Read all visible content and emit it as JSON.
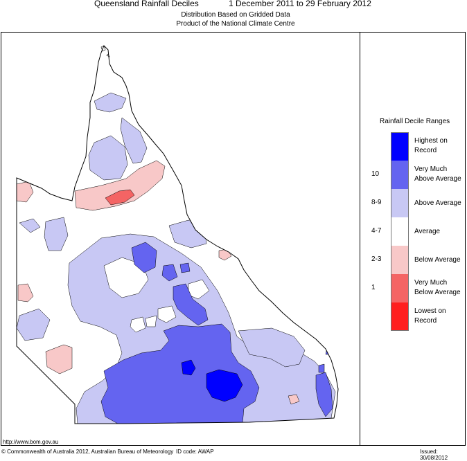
{
  "header": {
    "title": "Queensland Rainfall Deciles",
    "dates": "1 December 2011 to 29 February 2012",
    "subtitle1": "Distribution Based on Gridded Data",
    "subtitle2": "Product of the National Climate Centre"
  },
  "legend": {
    "title": "Rainfall Decile Ranges",
    "items": [
      {
        "code": "",
        "label1": "Highest on",
        "label2": "Record",
        "color": "#0000ff"
      },
      {
        "code": "10",
        "label1": "Very Much",
        "label2": "Above Average",
        "color": "#6464f0"
      },
      {
        "code": "8-9",
        "label1": "Above Average",
        "label2": "",
        "color": "#c8c8f4"
      },
      {
        "code": "4-7",
        "label1": "Average",
        "label2": "",
        "color": "#ffffff"
      },
      {
        "code": "2-3",
        "label1": "Below Average",
        "label2": "",
        "color": "#f8c8c8"
      },
      {
        "code": "1",
        "label1": "Very Much",
        "label2": "Below Average",
        "color": "#f46464"
      },
      {
        "code": "",
        "label1": "Lowest on",
        "label2": "Record",
        "color": "#ff1e1e"
      }
    ]
  },
  "footer": {
    "url": "http://www.bom.gov.au",
    "copyright": "© Commonwealth of Australia 2012, Australian Bureau of Meteorology",
    "id_code": "ID code: AWAP",
    "issued": "Issued: 30/08/2012"
  },
  "colors": {
    "highest": "#0000ff",
    "very_much_above": "#6464f0",
    "above": "#c8c8f4",
    "average": "#ffffff",
    "below": "#f8c8c8",
    "very_much_below": "#f46464",
    "lowest": "#ff1e1e"
  }
}
